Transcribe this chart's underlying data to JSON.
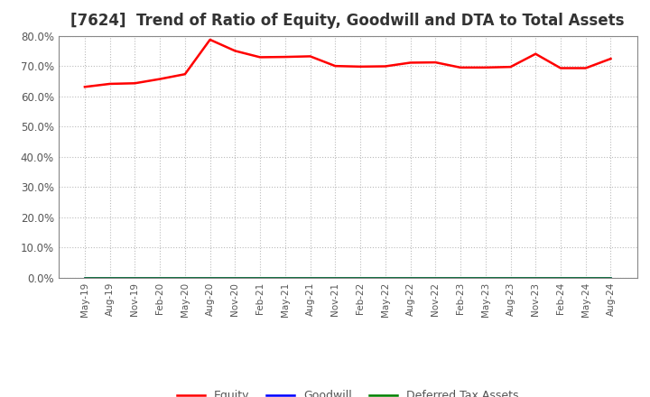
{
  "title": "[7624]  Trend of Ratio of Equity, Goodwill and DTA to Total Assets",
  "x_labels": [
    "May-19",
    "Aug-19",
    "Nov-19",
    "Feb-20",
    "May-20",
    "Aug-20",
    "Nov-20",
    "Feb-21",
    "May-21",
    "Aug-21",
    "Nov-21",
    "Feb-22",
    "May-22",
    "Aug-22",
    "Nov-22",
    "Feb-23",
    "May-23",
    "Aug-23",
    "Nov-23",
    "Feb-24",
    "May-24",
    "Aug-24"
  ],
  "equity": [
    0.631,
    0.641,
    0.643,
    0.657,
    0.673,
    0.787,
    0.75,
    0.729,
    0.73,
    0.732,
    0.7,
    0.698,
    0.699,
    0.711,
    0.712,
    0.695,
    0.695,
    0.697,
    0.74,
    0.693,
    0.693,
    0.724
  ],
  "goodwill": [
    0.0,
    0.0,
    0.0,
    0.0,
    0.0,
    0.0,
    0.0,
    0.0,
    0.0,
    0.0,
    0.0,
    0.0,
    0.0,
    0.0,
    0.0,
    0.0,
    0.0,
    0.0,
    0.0,
    0.0,
    0.0,
    0.0
  ],
  "dta": [
    0.0,
    0.0,
    0.0,
    0.0,
    0.0,
    0.0,
    0.0,
    0.0,
    0.0,
    0.0,
    0.0,
    0.0,
    0.0,
    0.0,
    0.0,
    0.0,
    0.0,
    0.0,
    0.0,
    0.0,
    0.0,
    0.0
  ],
  "equity_color": "#FF0000",
  "goodwill_color": "#0000FF",
  "dta_color": "#008000",
  "ylim_min": 0.0,
  "ylim_max": 0.8,
  "yticks": [
    0.0,
    0.1,
    0.2,
    0.3,
    0.4,
    0.5,
    0.6,
    0.7,
    0.8
  ],
  "background_color": "#FFFFFF",
  "grid_color": "#AAAAAA",
  "title_fontsize": 12,
  "title_color": "#333333",
  "tick_label_color": "#555555",
  "legend_labels": [
    "Equity",
    "Goodwill",
    "Deferred Tax Assets"
  ],
  "spine_color": "#888888"
}
